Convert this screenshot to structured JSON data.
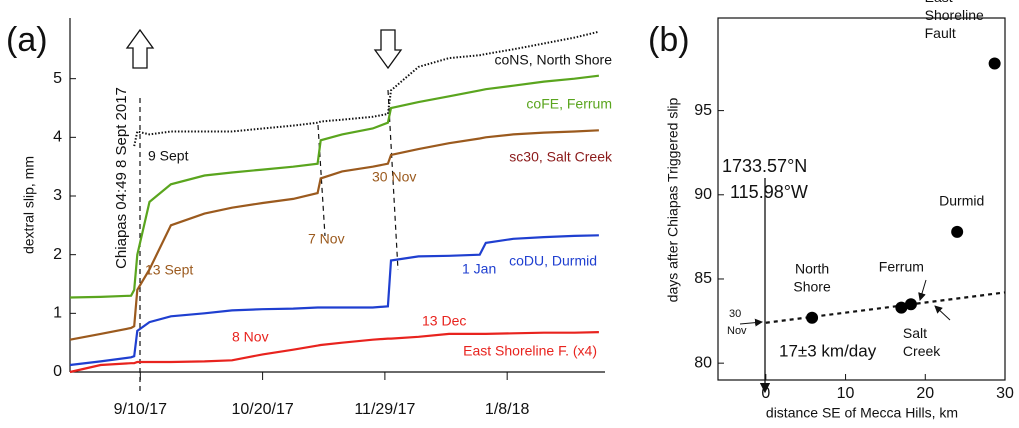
{
  "chart_data": [
    {
      "type": "line",
      "panel": "(a)",
      "y_label": "dextral slip, mm",
      "x": [
        "8/18/17",
        "8/28/17",
        "9/7/17",
        "9/8/17",
        "9/9/17",
        "9/13/17",
        "9/20/17",
        "10/1/17",
        "10/10/17",
        "10/20/17",
        "10/30/17",
        "11/7/17",
        "11/8/17",
        "11/15/17",
        "11/25/17",
        "11/30/17",
        "12/1/17",
        "12/10/17",
        "12/20/17",
        "12/30/17",
        "1/1/18",
        "1/10/18",
        "1/20/18",
        "1/30/18",
        "2/7/18"
      ],
      "xlim": [
        "8/18/17",
        "2/9/18"
      ],
      "xticks": [
        "9/10/17",
        "10/20/17",
        "11/29/17",
        "1/8/18"
      ],
      "ylim": [
        0,
        6
      ],
      "yticks": [
        0,
        1,
        2,
        3,
        4,
        5
      ],
      "series": [
        {
          "name": "coNS, North Shore",
          "color": "#111111",
          "dotted": true,
          "values": [
            null,
            null,
            null,
            3.85,
            4.1,
            4.05,
            4.1,
            4.1,
            4.1,
            4.15,
            4.2,
            4.25,
            4.27,
            4.3,
            4.35,
            4.4,
            4.8,
            5.2,
            5.35,
            5.4,
            5.42,
            5.5,
            5.6,
            5.7,
            5.8
          ]
        },
        {
          "name": "coFE, Ferrum",
          "color": "#5aa51e",
          "dotted": false,
          "values": [
            1.27,
            1.28,
            1.3,
            1.4,
            2.0,
            2.9,
            3.2,
            3.35,
            3.4,
            3.45,
            3.5,
            3.55,
            3.95,
            4.05,
            4.15,
            4.25,
            4.5,
            4.6,
            4.7,
            4.8,
            4.82,
            4.88,
            4.95,
            5.0,
            5.05
          ]
        },
        {
          "name": "sc30, Salt Creek",
          "color": "#9b5a1e",
          "dotted": false,
          "values": [
            0.55,
            0.65,
            0.75,
            0.78,
            1.4,
            1.75,
            2.5,
            2.7,
            2.8,
            2.88,
            2.95,
            3.05,
            3.3,
            3.42,
            3.5,
            3.55,
            3.7,
            3.8,
            3.9,
            3.98,
            4.0,
            4.05,
            4.08,
            4.1,
            4.12
          ]
        },
        {
          "name": "coDU, Durmid",
          "color": "#1f3fd0",
          "dotted": false,
          "values": [
            0.12,
            0.18,
            0.25,
            0.27,
            0.7,
            0.85,
            0.95,
            1.0,
            1.05,
            1.07,
            1.08,
            1.1,
            1.1,
            1.1,
            1.1,
            1.12,
            1.9,
            1.97,
            1.98,
            2.0,
            2.2,
            2.27,
            2.3,
            2.32,
            2.33
          ]
        },
        {
          "name": "East Shoreline F. (x4)",
          "color": "#e8231e",
          "dotted": false,
          "values": [
            0.0,
            0.12,
            0.15,
            0.15,
            0.17,
            0.17,
            0.17,
            0.18,
            0.2,
            0.3,
            0.38,
            0.45,
            0.46,
            0.5,
            0.55,
            0.57,
            0.57,
            0.6,
            0.65,
            0.65,
            0.65,
            0.66,
            0.67,
            0.67,
            0.68
          ]
        }
      ],
      "annotations": [
        "9 Sept",
        "13 Sept",
        "7 Nov",
        "30 Nov",
        "8 Nov",
        "13 Dec",
        "1 Jan",
        "Chiapas  04:49 8 Sept 2017"
      ]
    },
    {
      "type": "scatter",
      "panel": "(b)",
      "y_label": "days after Chiapas Triggered slip",
      "x_label": "distance SE of Mecca Hills, km",
      "x": [
        5.8,
        17,
        18.2,
        24,
        28.7
      ],
      "values": [
        82.7,
        83.3,
        83.5,
        87.8,
        97.8
      ],
      "labels": [
        [
          "North",
          "Shore"
        ],
        [
          "Ferrum"
        ],
        [
          "Salt",
          "Creek"
        ],
        [
          "Durmid"
        ],
        [
          "East",
          "Shoreline",
          "Fault"
        ]
      ],
      "color": "#000000",
      "xlim": [
        -6,
        30
      ],
      "xticks": [
        0,
        10,
        20,
        30
      ],
      "ylim": [
        79,
        100.5
      ],
      "yticks": [
        80,
        85,
        90,
        95
      ],
      "fit": {
        "x": [
          0,
          30
        ],
        "values": [
          82.4,
          84.2
        ],
        "label": "17±3 km/day"
      },
      "annotations": [
        "1733.57°N",
        "115.98°W",
        "30",
        "Nov"
      ]
    }
  ]
}
